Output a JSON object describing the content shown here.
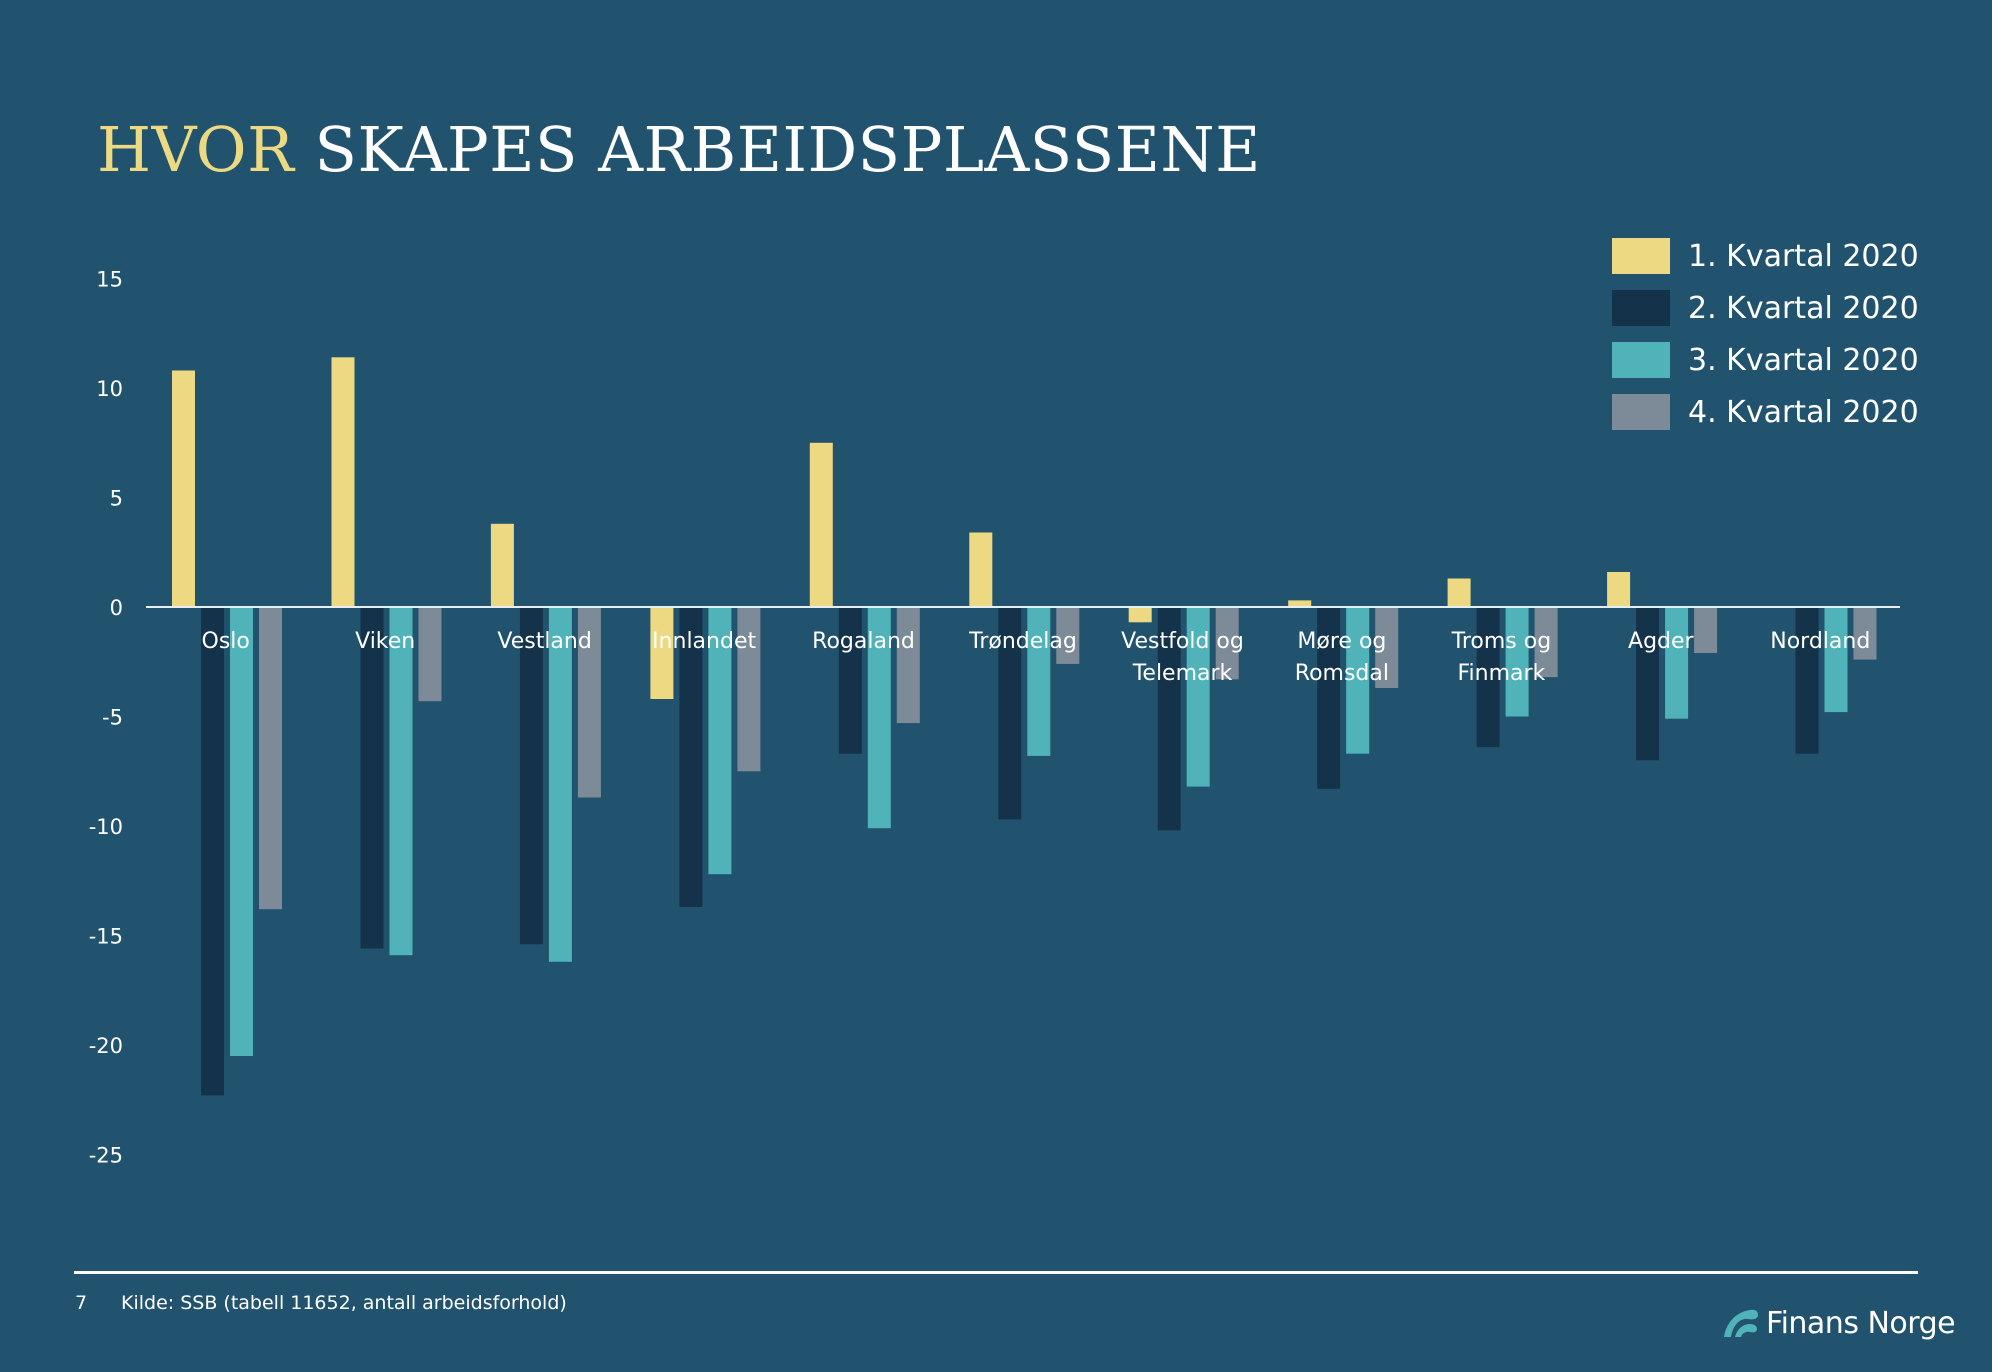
{
  "page": {
    "title_highlight": "HVOR",
    "title_rest": "SKAPES ARBEIDSPLASSENE",
    "page_number": "7",
    "source": "Kilde: SSB (tabell 11652, antall arbeidsforhold)",
    "brand": "Finans Norge"
  },
  "colors": {
    "background": "#22536e",
    "title_highlight": "#ecd982",
    "series": [
      "#ecd982",
      "#14324a",
      "#4fb3b9",
      "#7d8b99"
    ]
  },
  "chart_data": {
    "type": "bar",
    "title": "",
    "xlabel": "",
    "ylabel": "",
    "ylim": [
      -25,
      15
    ],
    "yticks": [
      "15",
      "10",
      "5",
      "0",
      "-5",
      "-10",
      "-15",
      "-20",
      "-25"
    ],
    "ytick_values": [
      15,
      10,
      5,
      0,
      -5,
      -10,
      -15,
      -20,
      -25
    ],
    "legend_position": "top-right",
    "grid": false,
    "categories": [
      [
        "Oslo"
      ],
      [
        "Viken"
      ],
      [
        "Vestland"
      ],
      [
        "Innlandet"
      ],
      [
        "Rogaland"
      ],
      [
        "Trøndelag"
      ],
      [
        "Vestfold og",
        "Telemark"
      ],
      [
        "Møre og",
        "Romsdal"
      ],
      [
        "Troms og",
        "Finmark"
      ],
      [
        "Agder"
      ],
      [
        "Nordland"
      ]
    ],
    "series": [
      {
        "name": "1. Kvartal 2020",
        "values": [
          10.8,
          11.4,
          3.8,
          -4.2,
          7.5,
          3.4,
          -0.7,
          0.3,
          1.3,
          1.6,
          0.0
        ]
      },
      {
        "name": "2. Kvartal 2020",
        "values": [
          -22.3,
          -15.6,
          -15.4,
          -13.7,
          -6.7,
          -9.7,
          -10.2,
          -8.3,
          -6.4,
          -7.0,
          -6.7
        ]
      },
      {
        "name": "3. Kvartal 2020",
        "values": [
          -20.5,
          -15.9,
          -16.2,
          -12.2,
          -10.1,
          -6.8,
          -8.2,
          -6.7,
          -5.0,
          -5.1,
          -4.8
        ]
      },
      {
        "name": "4. Kvartal 2020",
        "values": [
          -13.8,
          -4.3,
          -8.7,
          -7.5,
          -5.3,
          -2.6,
          -3.3,
          -3.7,
          -3.2,
          -2.1,
          -2.4
        ]
      }
    ]
  }
}
